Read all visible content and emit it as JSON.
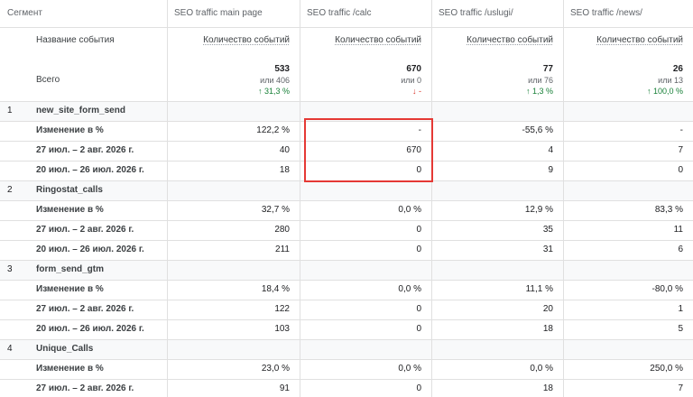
{
  "header": {
    "columns": [
      "Сегмент",
      "SEO traffic main page",
      "SEO traffic /calc",
      "SEO traffic /uslugi/",
      "SEO traffic /news/"
    ]
  },
  "subheader": {
    "label": "Название события",
    "metrics": [
      "Количество событий",
      "Количество событий",
      "Количество событий",
      "Количество событий"
    ]
  },
  "totals": {
    "label": "Всего",
    "cells": [
      {
        "value": "533",
        "sub": "или 406",
        "change": "↑ 31,3 %"
      },
      {
        "value": "670",
        "sub": "или 0",
        "change": "↓ -"
      },
      {
        "value": "77",
        "sub": "или 76",
        "change": "↑ 1,3 %"
      },
      {
        "value": "26",
        "sub": "или 13",
        "change": "↑ 100,0 %"
      }
    ]
  },
  "groups": [
    {
      "index": "1",
      "name": "new_site_form_send",
      "rows": [
        {
          "label": "Изменение в %",
          "cells": [
            "122,2 %",
            "-",
            "-55,6 %",
            "-"
          ]
        },
        {
          "label": "27 июл. – 2 авг. 2026 г.",
          "cells": [
            "40",
            "670",
            "4",
            "7"
          ]
        },
        {
          "label": "20 июл. – 26 июл. 2026 г.",
          "cells": [
            "18",
            "0",
            "9",
            "0"
          ]
        }
      ]
    },
    {
      "index": "2",
      "name": "Ringostat_calls",
      "rows": [
        {
          "label": "Изменение в %",
          "cells": [
            "32,7 %",
            "0,0 %",
            "12,9 %",
            "83,3 %"
          ]
        },
        {
          "label": "27 июл. – 2 авг. 2026 г.",
          "cells": [
            "280",
            "0",
            "35",
            "11"
          ]
        },
        {
          "label": "20 июл. – 26 июл. 2026 г.",
          "cells": [
            "211",
            "0",
            "31",
            "6"
          ]
        }
      ]
    },
    {
      "index": "3",
      "name": "form_send_gtm",
      "rows": [
        {
          "label": "Изменение в %",
          "cells": [
            "18,4 %",
            "0,0 %",
            "11,1 %",
            "-80,0 %"
          ]
        },
        {
          "label": "27 июл. – 2 авг. 2026 г.",
          "cells": [
            "122",
            "0",
            "20",
            "1"
          ]
        },
        {
          "label": "20 июл. – 26 июл. 2026 г.",
          "cells": [
            "103",
            "0",
            "18",
            "5"
          ]
        }
      ]
    },
    {
      "index": "4",
      "name": "Unique_Calls",
      "rows": [
        {
          "label": "Изменение в %",
          "cells": [
            "23,0 %",
            "0,0 %",
            "0,0 %",
            "250,0 %"
          ]
        },
        {
          "label": "27 июл. – 2 авг. 2026 г.",
          "cells": [
            "91",
            "0",
            "18",
            "7"
          ]
        }
      ]
    }
  ]
}
